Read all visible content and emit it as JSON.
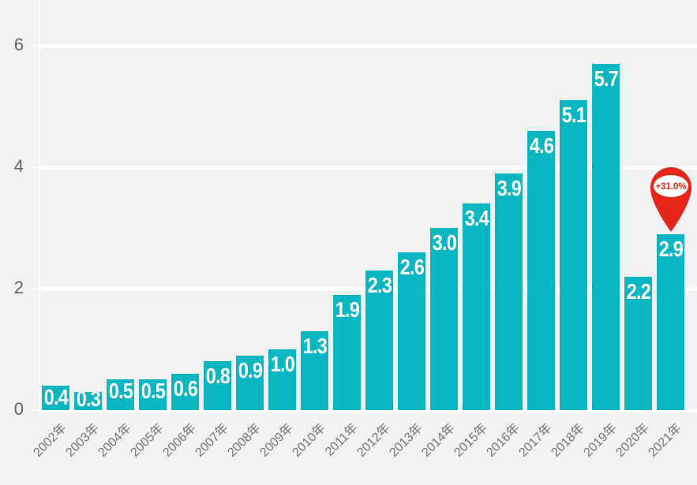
{
  "colors": {
    "background": "#f2f2f2",
    "bar": "#09b6c1",
    "grid": "#ffffff",
    "y_label": "#636363",
    "x_label": "#757575",
    "value_label": "#ffffff",
    "pin": "#e7261a",
    "pin_inner": "#ffffff",
    "pin_text": "#e7261a"
  },
  "chart_data": {
    "type": "bar",
    "categories": [
      "2002年",
      "2003年",
      "2004年",
      "2005年",
      "2006年",
      "2007年",
      "2008年",
      "2009年",
      "2010年",
      "2011年",
      "2012年",
      "2013年",
      "2014年",
      "2015年",
      "2016年",
      "2017年",
      "2018年",
      "2019年",
      "2020年",
      "2021年"
    ],
    "values": [
      0.4,
      0.3,
      0.5,
      0.5,
      0.6,
      0.8,
      0.9,
      1.0,
      1.3,
      1.9,
      2.3,
      2.6,
      3.0,
      3.4,
      3.9,
      4.6,
      5.1,
      5.7,
      2.2,
      2.9
    ],
    "value_labels": [
      "0.4",
      "0.3",
      "0.5",
      "0.5",
      "0.6",
      "0.8",
      "0.9",
      "1.0",
      "1.3",
      "1.9",
      "2.3",
      "2.6",
      "3.0",
      "3.4",
      "3.9",
      "4.6",
      "5.1",
      "5.7",
      "2.2",
      "2.9"
    ],
    "title": "",
    "xlabel": "",
    "ylabel": "",
    "ylim": [
      0,
      6
    ],
    "yticks": [
      0,
      2,
      4,
      6
    ],
    "grid": true,
    "legend": false,
    "annotation": {
      "target": "2021年",
      "label": "+31.0%"
    }
  }
}
